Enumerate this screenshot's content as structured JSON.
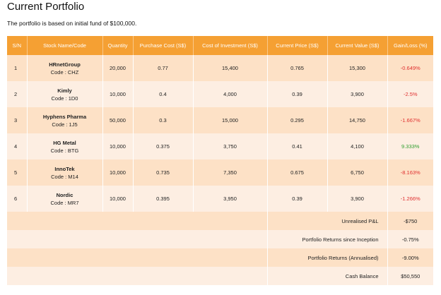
{
  "page": {
    "title": "Current Portfolio",
    "intro": "The portfolio is based on initial fund of $100,000."
  },
  "table": {
    "headers": [
      "S/N",
      "Stock Name/Code",
      "Quantity",
      "Purchase Cost (S$)",
      "Cost of Investment (S$)",
      "Current Price (S$)",
      "Current Value (S$)",
      "Gain/Loss (%)"
    ],
    "rows": [
      {
        "sn": "1",
        "name": "HRnetGroup",
        "code": "Code : CHZ",
        "quantity": "20,000",
        "purchase_cost": "0.77",
        "cost_of_investment": "15,400",
        "current_price": "0.765",
        "current_value": "15,300",
        "gain_loss": "-0.649%",
        "trend": "neg"
      },
      {
        "sn": "2",
        "name": "Kimly",
        "code": "Code : 1D0",
        "quantity": "10,000",
        "purchase_cost": "0.4",
        "cost_of_investment": "4,000",
        "current_price": "0.39",
        "current_value": "3,900",
        "gain_loss": "-2.5%",
        "trend": "neg"
      },
      {
        "sn": "3",
        "name": "Hyphens Pharma",
        "code": "Code : 1J5",
        "quantity": "50,000",
        "purchase_cost": "0.3",
        "cost_of_investment": "15,000",
        "current_price": "0.295",
        "current_value": "14,750",
        "gain_loss": "-1.667%",
        "trend": "neg"
      },
      {
        "sn": "4",
        "name": "HG Metal",
        "code": "Code : BTG",
        "quantity": "10,000",
        "purchase_cost": "0.375",
        "cost_of_investment": "3,750",
        "current_price": "0.41",
        "current_value": "4,100",
        "gain_loss": "9.333%",
        "trend": "pos"
      },
      {
        "sn": "5",
        "name": "InnoTek",
        "code": "Code : M14",
        "quantity": "10,000",
        "purchase_cost": "0.735",
        "cost_of_investment": "7,350",
        "current_price": "0.675",
        "current_value": "6,750",
        "gain_loss": "-8.163%",
        "trend": "neg"
      },
      {
        "sn": "6",
        "name": "Nordic",
        "code": "Code : MR7",
        "quantity": "10,000",
        "purchase_cost": "0.395",
        "cost_of_investment": "3,950",
        "current_price": "0.39",
        "current_value": "3,900",
        "gain_loss": "-1.266%",
        "trend": "neg"
      }
    ],
    "summary": [
      {
        "label": "Unrealised P&L",
        "value": "-$750"
      },
      {
        "label": "Portfolio Returns since Inception",
        "value": "-0.75%"
      },
      {
        "label": "Portfolio Returns (Annualised)",
        "value": "-9.00%"
      },
      {
        "label": "Cash Balance",
        "value": "$50,550"
      }
    ]
  },
  "colors": {
    "header_bg": "#f5a033",
    "row_dark": "#fde1c6",
    "row_light": "#fdeee2",
    "negative": "#e03030",
    "positive": "#2e9e2e"
  }
}
